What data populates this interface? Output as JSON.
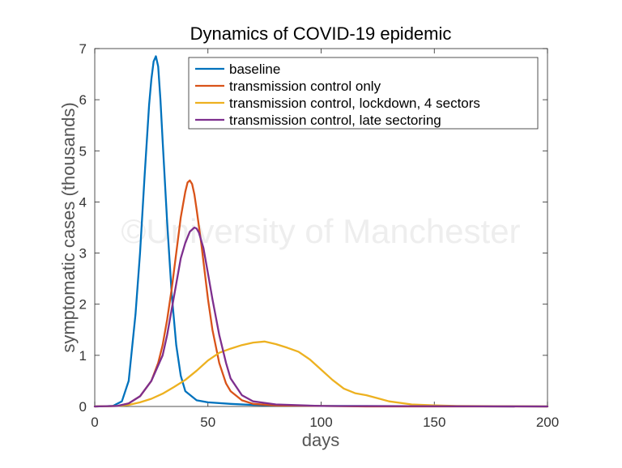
{
  "chart_data": {
    "type": "line",
    "title": "Dynamics of COVID-19 epidemic",
    "xlabel": "days",
    "ylabel": "symptomatic cases (thousands)",
    "xlim": [
      0,
      200
    ],
    "ylim": [
      0,
      7
    ],
    "xticks": [
      "0",
      "50",
      "100",
      "150",
      "200"
    ],
    "yticks": [
      "0",
      "1",
      "2",
      "3",
      "4",
      "5",
      "6",
      "7"
    ],
    "grid": false,
    "legend_position": "top-right",
    "watermark": "©University of Manchester",
    "series": [
      {
        "name": "baseline",
        "color": "#0072bd",
        "x": [
          0,
          8,
          12,
          15,
          18,
          20,
          22,
          24,
          25,
          26,
          27,
          28,
          29,
          30,
          32,
          34,
          36,
          38,
          40,
          45,
          50,
          60,
          70,
          80,
          100,
          200
        ],
        "y": [
          0,
          0.01,
          0.1,
          0.5,
          1.8,
          3.0,
          4.5,
          5.9,
          6.4,
          6.75,
          6.85,
          6.65,
          6.0,
          5.2,
          3.6,
          2.2,
          1.2,
          0.6,
          0.3,
          0.12,
          0.08,
          0.05,
          0.03,
          0.02,
          0.01,
          0
        ]
      },
      {
        "name": "transmission control only",
        "color": "#d95319",
        "x": [
          0,
          10,
          15,
          20,
          25,
          28,
          30,
          32,
          34,
          36,
          38,
          40,
          41,
          42,
          43,
          44,
          45,
          47,
          50,
          52,
          55,
          58,
          60,
          65,
          70,
          80,
          100,
          120,
          200
        ],
        "y": [
          0,
          0.01,
          0.06,
          0.2,
          0.5,
          0.85,
          1.2,
          1.7,
          2.3,
          3.0,
          3.7,
          4.2,
          4.38,
          4.42,
          4.35,
          4.15,
          3.85,
          3.2,
          2.1,
          1.5,
          0.85,
          0.45,
          0.3,
          0.12,
          0.05,
          0.02,
          0.01,
          0,
          0
        ]
      },
      {
        "name": "transmission control, lockdown, 4 sectors",
        "color": "#edb120",
        "x": [
          0,
          10,
          15,
          20,
          25,
          30,
          35,
          40,
          45,
          50,
          55,
          60,
          65,
          70,
          75,
          80,
          85,
          90,
          95,
          100,
          105,
          110,
          115,
          120,
          125,
          130,
          140,
          150,
          160,
          200
        ],
        "y": [
          0,
          0.01,
          0.03,
          0.08,
          0.15,
          0.25,
          0.38,
          0.52,
          0.7,
          0.9,
          1.05,
          1.13,
          1.2,
          1.25,
          1.27,
          1.22,
          1.15,
          1.07,
          0.92,
          0.72,
          0.52,
          0.35,
          0.26,
          0.22,
          0.16,
          0.1,
          0.04,
          0.02,
          0.01,
          0
        ]
      },
      {
        "name": "transmission control, late sectoring",
        "color": "#7e2f8e",
        "x": [
          0,
          10,
          15,
          20,
          25,
          30,
          32,
          34,
          36,
          38,
          40,
          42,
          44,
          45,
          46,
          48,
          50,
          52,
          55,
          58,
          60,
          65,
          70,
          80,
          100,
          200
        ],
        "y": [
          0,
          0.01,
          0.06,
          0.2,
          0.5,
          1.0,
          1.4,
          1.9,
          2.4,
          2.9,
          3.2,
          3.42,
          3.5,
          3.48,
          3.4,
          3.1,
          2.6,
          2.1,
          1.4,
          0.85,
          0.55,
          0.22,
          0.1,
          0.04,
          0.01,
          0
        ]
      }
    ]
  }
}
